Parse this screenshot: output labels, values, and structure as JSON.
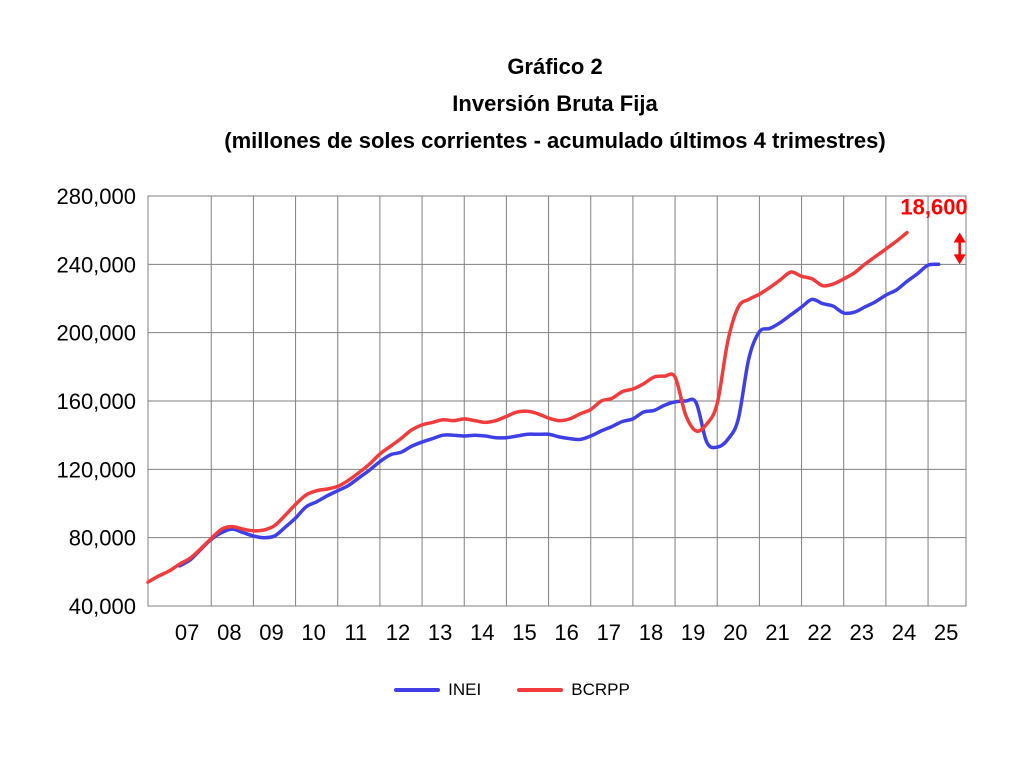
{
  "title_lines": [
    "Gráfico 2",
    "Inversión Bruta Fija",
    "(millones de soles corrientes - acumulado últimos 4 trimestres)"
  ],
  "chart_data": {
    "type": "line",
    "title": "Gráfico 2 — Inversión Bruta Fija (millones de soles corrientes - acumulado últimos 4 trimestres)",
    "xlabel": "",
    "ylabel": "",
    "ylim": [
      40000,
      280000
    ],
    "xlim": [
      2006.5,
      2025.9
    ],
    "yticks": [
      40000,
      80000,
      120000,
      160000,
      200000,
      240000,
      280000
    ],
    "ytick_labels": [
      "40,000",
      "80,000",
      "120,000",
      "160,000",
      "200,000",
      "240,000",
      "280,000"
    ],
    "xtick_labels": [
      "07",
      "08",
      "09",
      "10",
      "11",
      "12",
      "13",
      "14",
      "15",
      "16",
      "17",
      "18",
      "19",
      "20",
      "21",
      "22",
      "23",
      "24",
      "25"
    ],
    "grid": true,
    "legend_position": "bottom-center",
    "annotation": {
      "text": "18,600",
      "color": "#ff0000",
      "x": 2025.75,
      "from": 240000,
      "to": 258600
    },
    "series": [
      {
        "name": "INEI",
        "color": "#3f3fe6",
        "points": [
          [
            2007.25,
            63500
          ],
          [
            2007.5,
            67000
          ],
          [
            2007.75,
            73000
          ],
          [
            2008.0,
            79000
          ],
          [
            2008.25,
            83000
          ],
          [
            2008.5,
            85000
          ],
          [
            2008.75,
            83000
          ],
          [
            2009.0,
            81000
          ],
          [
            2009.25,
            80000
          ],
          [
            2009.5,
            81000
          ],
          [
            2009.75,
            86000
          ],
          [
            2010.0,
            91500
          ],
          [
            2010.25,
            98000
          ],
          [
            2010.5,
            101000
          ],
          [
            2010.75,
            104500
          ],
          [
            2011.0,
            107500
          ],
          [
            2011.25,
            110500
          ],
          [
            2011.5,
            115000
          ],
          [
            2011.75,
            119500
          ],
          [
            2012.0,
            124500
          ],
          [
            2012.25,
            128500
          ],
          [
            2012.5,
            130000
          ],
          [
            2012.75,
            133500
          ],
          [
            2013.0,
            136000
          ],
          [
            2013.25,
            138000
          ],
          [
            2013.5,
            140000
          ],
          [
            2013.75,
            140000
          ],
          [
            2014.0,
            139500
          ],
          [
            2014.25,
            140000
          ],
          [
            2014.5,
            139500
          ],
          [
            2014.75,
            138500
          ],
          [
            2015.0,
            138500
          ],
          [
            2015.25,
            139500
          ],
          [
            2015.5,
            140500
          ],
          [
            2015.75,
            140500
          ],
          [
            2016.0,
            140500
          ],
          [
            2016.25,
            139000
          ],
          [
            2016.5,
            138000
          ],
          [
            2016.75,
            137500
          ],
          [
            2017.0,
            139500
          ],
          [
            2017.25,
            142500
          ],
          [
            2017.5,
            145000
          ],
          [
            2017.75,
            148000
          ],
          [
            2018.0,
            149500
          ],
          [
            2018.25,
            153500
          ],
          [
            2018.5,
            154500
          ],
          [
            2018.75,
            157500
          ],
          [
            2019.0,
            159500
          ],
          [
            2019.25,
            160000
          ],
          [
            2019.5,
            159000
          ],
          [
            2019.75,
            136000
          ],
          [
            2020.0,
            133000
          ],
          [
            2020.25,
            137500
          ],
          [
            2020.5,
            149500
          ],
          [
            2020.75,
            185000
          ],
          [
            2021.0,
            200500
          ],
          [
            2021.25,
            202500
          ],
          [
            2021.5,
            206000
          ],
          [
            2021.75,
            210500
          ],
          [
            2022.0,
            215000
          ],
          [
            2022.25,
            219500
          ],
          [
            2022.5,
            217000
          ],
          [
            2022.75,
            215500
          ],
          [
            2023.0,
            211500
          ],
          [
            2023.25,
            212000
          ],
          [
            2023.5,
            215000
          ],
          [
            2023.75,
            218000
          ],
          [
            2024.0,
            222000
          ],
          [
            2024.25,
            225000
          ],
          [
            2024.5,
            230000
          ],
          [
            2024.75,
            234500
          ],
          [
            2025.0,
            239500
          ],
          [
            2025.25,
            240000
          ]
        ]
      },
      {
        "name": "BCRPP",
        "color": "#f03c3c",
        "points": [
          [
            2006.5,
            54000
          ],
          [
            2006.75,
            57500
          ],
          [
            2007.0,
            60500
          ],
          [
            2007.25,
            64500
          ],
          [
            2007.5,
            68000
          ],
          [
            2007.75,
            73500
          ],
          [
            2008.0,
            79500
          ],
          [
            2008.25,
            85000
          ],
          [
            2008.5,
            86500
          ],
          [
            2008.75,
            85000
          ],
          [
            2009.0,
            84000
          ],
          [
            2009.25,
            84500
          ],
          [
            2009.5,
            87000
          ],
          [
            2009.75,
            93000
          ],
          [
            2010.0,
            99500
          ],
          [
            2010.25,
            105000
          ],
          [
            2010.5,
            107500
          ],
          [
            2010.75,
            108500
          ],
          [
            2011.0,
            110000
          ],
          [
            2011.25,
            113500
          ],
          [
            2011.5,
            118000
          ],
          [
            2011.75,
            123000
          ],
          [
            2012.0,
            129000
          ],
          [
            2012.25,
            133500
          ],
          [
            2012.5,
            138000
          ],
          [
            2012.75,
            143000
          ],
          [
            2013.0,
            146000
          ],
          [
            2013.25,
            147500
          ],
          [
            2013.5,
            149000
          ],
          [
            2013.75,
            148500
          ],
          [
            2014.0,
            149500
          ],
          [
            2014.25,
            148500
          ],
          [
            2014.5,
            147500
          ],
          [
            2014.75,
            148500
          ],
          [
            2015.0,
            151000
          ],
          [
            2015.25,
            153500
          ],
          [
            2015.5,
            154000
          ],
          [
            2015.75,
            152500
          ],
          [
            2016.0,
            150000
          ],
          [
            2016.25,
            148500
          ],
          [
            2016.5,
            149500
          ],
          [
            2016.75,
            152500
          ],
          [
            2017.0,
            155000
          ],
          [
            2017.25,
            160000
          ],
          [
            2017.5,
            161500
          ],
          [
            2017.75,
            165500
          ],
          [
            2018.0,
            167000
          ],
          [
            2018.25,
            170000
          ],
          [
            2018.5,
            174000
          ],
          [
            2018.75,
            174500
          ],
          [
            2019.0,
            174000
          ],
          [
            2019.25,
            152000
          ],
          [
            2019.5,
            142500
          ],
          [
            2019.75,
            146500
          ],
          [
            2020.0,
            158500
          ],
          [
            2020.25,
            195000
          ],
          [
            2020.5,
            215000
          ],
          [
            2020.75,
            219500
          ],
          [
            2021.0,
            222500
          ],
          [
            2021.25,
            226500
          ],
          [
            2021.5,
            231000
          ],
          [
            2021.75,
            235500
          ],
          [
            2022.0,
            233000
          ],
          [
            2022.25,
            231500
          ],
          [
            2022.5,
            227500
          ],
          [
            2022.75,
            228500
          ],
          [
            2023.0,
            231500
          ],
          [
            2023.25,
            235000
          ],
          [
            2023.5,
            240000
          ],
          [
            2023.75,
            244500
          ],
          [
            2024.0,
            249000
          ],
          [
            2024.25,
            253500
          ],
          [
            2024.5,
            258600
          ]
        ]
      }
    ]
  }
}
